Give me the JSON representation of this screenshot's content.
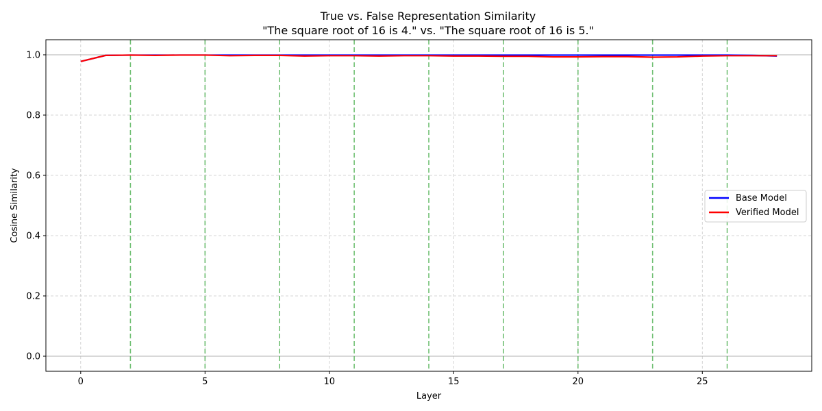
{
  "chart_data": {
    "type": "line",
    "title": "True vs. False Representation Similarity",
    "subtitle": "\"The square root of 16 is 4.\" vs. \"The square root of 16 is 5.\"",
    "xlabel": "Layer",
    "ylabel": "Cosine Similarity",
    "xlim": [
      -1.4,
      29.4
    ],
    "ylim": [
      -0.05,
      1.05
    ],
    "xticks": [
      0,
      5,
      10,
      15,
      20,
      25
    ],
    "yticks": [
      0.0,
      0.2,
      0.4,
      0.6,
      0.8,
      1.0
    ],
    "xtick_labels": [
      "0",
      "5",
      "10",
      "15",
      "20",
      "25"
    ],
    "ytick_labels": [
      "0.0",
      "0.2",
      "0.4",
      "0.6",
      "0.8",
      "1.0"
    ],
    "grid": true,
    "reference_lines_y": [
      0.0,
      1.0
    ],
    "highlight_layers_x": [
      2,
      5,
      8,
      11,
      14,
      17,
      20,
      23,
      26
    ],
    "legend_position": "center-right",
    "x": [
      0,
      1,
      2,
      3,
      4,
      5,
      6,
      7,
      8,
      9,
      10,
      11,
      12,
      13,
      14,
      15,
      16,
      17,
      18,
      19,
      20,
      21,
      22,
      23,
      24,
      25,
      26,
      27,
      28
    ],
    "series": [
      {
        "name": "Base Model",
        "color": "#0000ff",
        "values": [
          0.978,
          0.998,
          0.999,
          0.999,
          0.999,
          0.999,
          0.999,
          0.999,
          0.999,
          0.999,
          0.999,
          0.999,
          0.999,
          0.999,
          0.999,
          0.999,
          0.999,
          0.999,
          0.999,
          0.999,
          0.999,
          0.999,
          0.999,
          0.999,
          0.999,
          0.999,
          0.999,
          0.998,
          0.996
        ]
      },
      {
        "name": "Verified Model",
        "color": "#ff0000",
        "values": [
          0.978,
          0.998,
          0.999,
          0.998,
          0.999,
          0.999,
          0.997,
          0.998,
          0.998,
          0.996,
          0.997,
          0.997,
          0.996,
          0.997,
          0.997,
          0.996,
          0.996,
          0.995,
          0.995,
          0.993,
          0.993,
          0.994,
          0.994,
          0.992,
          0.993,
          0.996,
          0.997,
          0.997,
          0.997
        ]
      }
    ],
    "colors": {
      "grid": "#c8c8c8",
      "highlight_lines": "#4caf50",
      "reference_lines": "#b0b0b0"
    }
  }
}
